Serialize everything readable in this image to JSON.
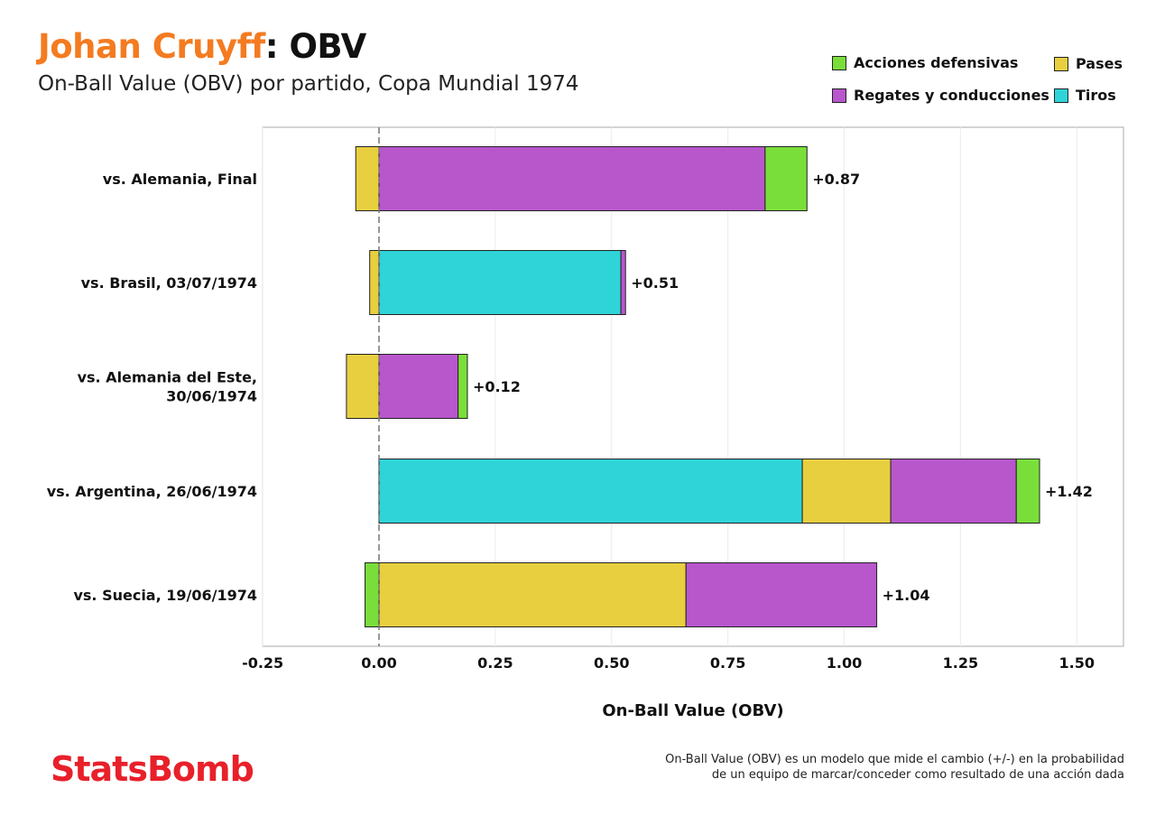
{
  "header": {
    "player_name": "Johan Cruyff",
    "title_suffix": ": OBV",
    "subtitle": "On-Ball Value (OBV) por partido, Copa Mundial 1974"
  },
  "legend": [
    {
      "label": "Acciones defensivas",
      "color": "#7ade3a"
    },
    {
      "label": "Pases",
      "color": "#e8cf40"
    },
    {
      "label": "Regates y conducciones",
      "color": "#b856cc"
    },
    {
      "label": "Tiros",
      "color": "#2fd4d8"
    }
  ],
  "chart_data": {
    "type": "bar",
    "orientation": "horizontal",
    "stacked": true,
    "title": "Johan Cruyff: OBV",
    "subtitle": "On-Ball Value (OBV) por partido, Copa Mundial 1974",
    "xlabel": "On-Ball Value (OBV)",
    "ylabel": "",
    "xlim": [
      -0.25,
      1.6
    ],
    "xticks": [
      -0.25,
      0.0,
      0.25,
      0.5,
      0.75,
      1.0,
      1.25,
      1.5
    ],
    "xtick_labels": [
      "-0.25",
      "0.00",
      "0.25",
      "0.50",
      "0.75",
      "1.00",
      "1.25",
      "1.50"
    ],
    "grid": true,
    "zero_line": "dashed",
    "legend_position": "top-right",
    "categories": [
      [
        "vs. Alemania, Final"
      ],
      [
        "vs. Brasil, 03/07/1974"
      ],
      [
        "vs. Alemania del Este,",
        "30/06/1974"
      ],
      [
        "vs. Argentina, 26/06/1974"
      ],
      [
        "vs. Suecia, 19/06/1974"
      ]
    ],
    "series": [
      {
        "name": "Acciones defensivas",
        "color": "#7ade3a",
        "values": [
          0.09,
          0.0,
          0.02,
          0.05,
          -0.03
        ]
      },
      {
        "name": "Pases",
        "color": "#e8cf40",
        "values": [
          -0.05,
          -0.02,
          -0.07,
          0.19,
          0.66
        ]
      },
      {
        "name": "Regates y conducciones",
        "color": "#b856cc",
        "values": [
          0.83,
          0.01,
          0.17,
          0.27,
          0.41
        ]
      },
      {
        "name": "Tiros",
        "color": "#2fd4d8",
        "values": [
          0.0,
          0.52,
          0.0,
          0.91,
          0.0
        ]
      }
    ],
    "totals": [
      0.87,
      0.51,
      0.12,
      1.42,
      1.04
    ],
    "total_labels": [
      "+0.87",
      "+0.51",
      "+0.12",
      "+1.42",
      "+1.04"
    ]
  },
  "footer": {
    "brand": "StatsBomb",
    "note_line1": "On-Ball Value (OBV) es un modelo que mide el cambio (+/-) en la probabilidad",
    "note_line2": "de un equipo de marcar/conceder como resultado de una acción dada"
  }
}
